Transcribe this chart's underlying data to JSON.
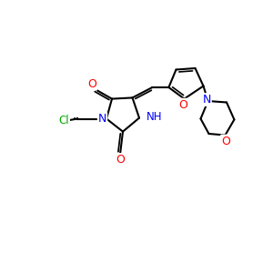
{
  "bg_color": "#ffffff",
  "atom_colors": {
    "C": "#000000",
    "N": "#0000ff",
    "O": "#ff0000",
    "Cl": "#00aa00",
    "H": "#000000"
  },
  "bond_color": "#000000",
  "bond_width": 1.5,
  "figsize": [
    3.0,
    3.0
  ],
  "dpi": 100
}
